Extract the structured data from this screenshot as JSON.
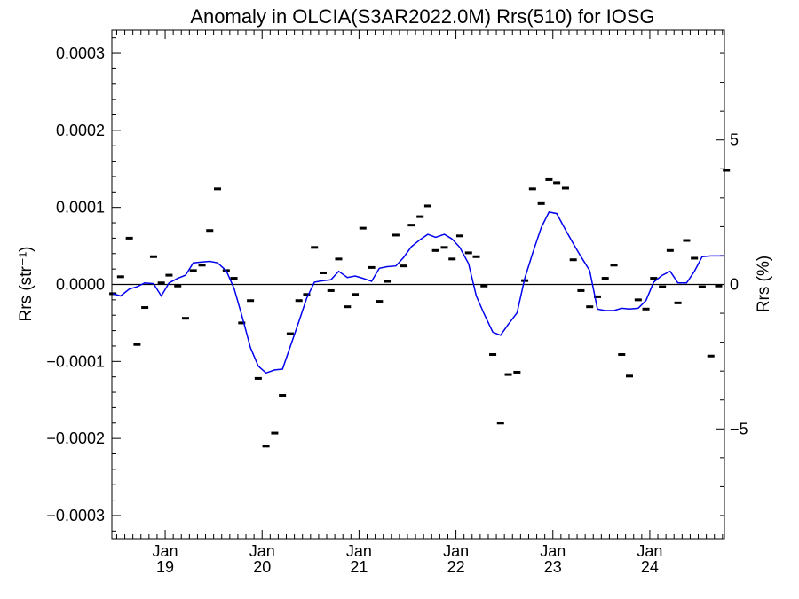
{
  "chart_data": {
    "type": "scatter",
    "title": "Anomaly in OLCIA(S3AR2022.0M) Rrs(510) for IOSG",
    "ylabel": "Rrs (str⁻¹)",
    "y2label": "Rrs (%)",
    "ylim": [
      -0.00033,
      0.00033
    ],
    "y2lim": [
      -8.8,
      8.8
    ],
    "xlim": [
      2018.45,
      2024.77
    ],
    "yticks": [
      "−0.0003",
      "−0.0002",
      "−0.0001",
      "0.0000",
      "0.0001",
      "0.0002",
      "0.0003"
    ],
    "ytick_values": [
      -0.0003,
      -0.0002,
      -0.0001,
      0,
      0.0001,
      0.0002,
      0.0003
    ],
    "y2ticks": [
      "−5",
      "0",
      "5"
    ],
    "y2tick_values": [
      -5,
      0,
      5
    ],
    "xticks": [
      {
        "month": "Jan",
        "year": "19",
        "x": 2019.0
      },
      {
        "month": "Jan",
        "year": "20",
        "x": 2020.0
      },
      {
        "month": "Jan",
        "year": "21",
        "x": 2021.0
      },
      {
        "month": "Jan",
        "year": "22",
        "x": 2022.0
      },
      {
        "month": "Jan",
        "year": "23",
        "x": 2023.0
      },
      {
        "month": "Jan",
        "year": "24",
        "x": 2024.0
      }
    ],
    "grid": false,
    "zero_line": true,
    "series": [
      {
        "style": "markers",
        "color": "#000000",
        "x": [
          2018.46,
          2018.54,
          2018.63,
          2018.71,
          2018.79,
          2018.88,
          2018.96,
          2019.04,
          2019.13,
          2019.21,
          2019.29,
          2019.38,
          2019.46,
          2019.54,
          2019.63,
          2019.71,
          2019.79,
          2019.88,
          2019.96,
          2020.04,
          2020.13,
          2020.21,
          2020.29,
          2020.38,
          2020.46,
          2020.54,
          2020.63,
          2020.71,
          2020.79,
          2020.88,
          2020.96,
          2021.04,
          2021.13,
          2021.21,
          2021.29,
          2021.38,
          2021.46,
          2021.54,
          2021.63,
          2021.71,
          2021.79,
          2021.88,
          2021.96,
          2022.04,
          2022.13,
          2022.21,
          2022.29,
          2022.38,
          2022.46,
          2022.54,
          2022.63,
          2022.71,
          2022.79,
          2022.88,
          2022.96,
          2023.04,
          2023.13,
          2023.21,
          2023.29,
          2023.38,
          2023.46,
          2023.54,
          2023.63,
          2023.71,
          2023.79,
          2023.88,
          2023.96,
          2024.04,
          2024.13,
          2024.21,
          2024.29,
          2024.38,
          2024.46,
          2024.54,
          2024.63,
          2024.71,
          2024.79
        ],
        "y": [
          -1.2e-05,
          1e-05,
          6e-05,
          -7.8e-05,
          -3e-05,
          3.6e-05,
          2e-06,
          1.2e-05,
          -2e-06,
          -4.4e-05,
          1.8e-05,
          2.5e-05,
          7e-05,
          0.000124,
          1.8e-05,
          8e-06,
          -5e-05,
          -2.1e-05,
          -0.000122,
          -0.00021,
          -0.000193,
          -0.000144,
          -6.4e-05,
          -2.1e-05,
          -1.3e-05,
          4.8e-05,
          1.5e-05,
          -8e-06,
          3.3e-05,
          -2.9e-05,
          -1.3e-05,
          7.3e-05,
          2.2e-05,
          -2.2e-05,
          4e-06,
          6.4e-05,
          2.4e-05,
          7.7e-05,
          8.8e-05,
          0.000102,
          4.4e-05,
          4.8e-05,
          3.3e-05,
          6.3e-05,
          4.1e-05,
          3.6e-05,
          -2e-06,
          -9.1e-05,
          -0.00018,
          -0.000117,
          -0.000114,
          5e-06,
          0.000124,
          0.000105,
          0.000136,
          0.000132,
          0.000125,
          3.2e-05,
          -8e-06,
          -2.9e-05,
          -1.6e-05,
          8e-06,
          2.5e-05,
          -9.1e-05,
          -0.000119,
          -2e-05,
          -3.2e-05,
          8e-06,
          -3e-06,
          4.4e-05,
          -2.4e-05,
          5.7e-05,
          3.4e-05,
          -3e-06,
          -9.3e-05,
          -2e-06,
          0.000148
        ]
      },
      {
        "style": "line",
        "color": "#0000ee",
        "x": [
          2018.46,
          2018.54,
          2018.63,
          2018.71,
          2018.79,
          2018.88,
          2018.96,
          2019.04,
          2019.13,
          2019.21,
          2019.29,
          2019.38,
          2019.46,
          2019.54,
          2019.63,
          2019.71,
          2019.79,
          2019.88,
          2019.96,
          2020.04,
          2020.13,
          2020.21,
          2020.29,
          2020.38,
          2020.46,
          2020.54,
          2020.63,
          2020.71,
          2020.79,
          2020.88,
          2020.96,
          2021.04,
          2021.13,
          2021.21,
          2021.29,
          2021.38,
          2021.46,
          2021.54,
          2021.63,
          2021.71,
          2021.79,
          2021.88,
          2021.96,
          2022.04,
          2022.13,
          2022.21,
          2022.29,
          2022.38,
          2022.46,
          2022.54,
          2022.63,
          2022.71,
          2022.79,
          2022.88,
          2022.96,
          2023.04,
          2023.13,
          2023.21,
          2023.29,
          2023.38,
          2023.46,
          2023.54,
          2023.63,
          2023.71,
          2023.79,
          2023.88,
          2023.96,
          2024.04,
          2024.13,
          2024.21,
          2024.29,
          2024.38,
          2024.46,
          2024.54,
          2024.63,
          2024.71,
          2024.77
        ],
        "y": [
          -1.2e-05,
          -1.5e-05,
          -6e-06,
          -3e-06,
          2e-06,
          1e-06,
          -1.5e-05,
          2e-06,
          8e-06,
          1.2e-05,
          2.8e-05,
          2.9e-05,
          3e-05,
          2.8e-05,
          1.8e-05,
          -5e-06,
          -4e-05,
          -8.2e-05,
          -0.000106,
          -0.000115,
          -0.000111,
          -0.00011,
          -8.1e-05,
          -4.8e-05,
          -1.8e-05,
          3e-06,
          5e-06,
          6e-06,
          1.7e-05,
          9e-06,
          1.1e-05,
          8e-06,
          4e-06,
          2.1e-05,
          2.3e-05,
          2.4e-05,
          3.5e-05,
          4.9e-05,
          5.8e-05,
          6.5e-05,
          6.1e-05,
          6.5e-05,
          5.9e-05,
          4.8e-05,
          2.7e-05,
          -1.5e-05,
          -3.8e-05,
          -6.2e-05,
          -6.6e-05,
          -5.2e-05,
          -3.7e-05,
          8e-06,
          4e-05,
          7.4e-05,
          9.4e-05,
          9.2e-05,
          7.1e-05,
          5.3e-05,
          3.6e-05,
          1.8e-05,
          -3.2e-05,
          -3.4e-05,
          -3.4e-05,
          -3.1e-05,
          -3.2e-05,
          -3.1e-05,
          -2.1e-05,
          3e-06,
          1.2e-05,
          1.7e-05,
          2e-06,
          2e-06,
          1.7e-05,
          3.6e-05,
          3.7e-05,
          3.7e-05,
          3.7e-05
        ]
      }
    ]
  }
}
